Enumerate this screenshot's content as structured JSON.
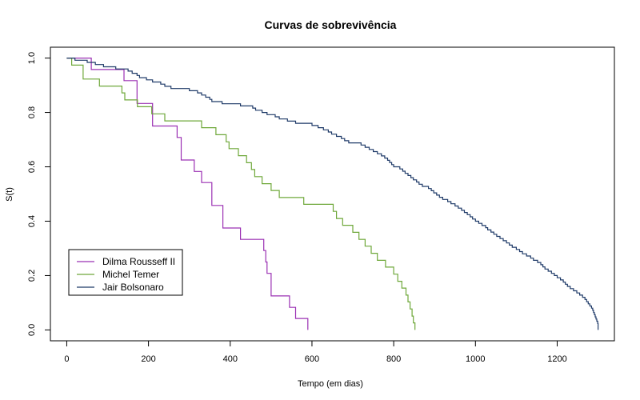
{
  "chart_data": {
    "type": "line",
    "step": true,
    "title": "Curvas de sobrevivência",
    "xlabel": "Tempo (em dias)",
    "ylabel": "S(t)",
    "xlim": [
      -40,
      1340
    ],
    "ylim": [
      -0.04,
      1.04
    ],
    "xticks": [
      0,
      200,
      400,
      600,
      800,
      1000,
      1200
    ],
    "yticks": [
      0.0,
      0.2,
      0.4,
      0.6,
      0.8,
      1.0
    ],
    "ytick_labels": [
      "0.0",
      "0.2",
      "0.4",
      "0.6",
      "0.8",
      "1.0"
    ],
    "grid": false,
    "legend_position": "bottom-left",
    "series": [
      {
        "name": "Dilma Rousseff II",
        "color": "#9B30B3",
        "points": [
          [
            0,
            1.0
          ],
          [
            60,
            0.958
          ],
          [
            140,
            0.917
          ],
          [
            172,
            0.833
          ],
          [
            210,
            0.75
          ],
          [
            270,
            0.708
          ],
          [
            280,
            0.625
          ],
          [
            312,
            0.583
          ],
          [
            330,
            0.542
          ],
          [
            355,
            0.458
          ],
          [
            382,
            0.375
          ],
          [
            425,
            0.333
          ],
          [
            482,
            0.292
          ],
          [
            487,
            0.25
          ],
          [
            490,
            0.208
          ],
          [
            500,
            0.125
          ],
          [
            545,
            0.083
          ],
          [
            560,
            0.042
          ],
          [
            590,
            0.0
          ]
        ]
      },
      {
        "name": "Michel Temer",
        "color": "#6FA83A",
        "points": [
          [
            0,
            1.0
          ],
          [
            12,
            0.974
          ],
          [
            40,
            0.923
          ],
          [
            80,
            0.897
          ],
          [
            135,
            0.872
          ],
          [
            142,
            0.846
          ],
          [
            173,
            0.821
          ],
          [
            208,
            0.795
          ],
          [
            240,
            0.769
          ],
          [
            330,
            0.744
          ],
          [
            365,
            0.718
          ],
          [
            390,
            0.692
          ],
          [
            397,
            0.667
          ],
          [
            420,
            0.641
          ],
          [
            440,
            0.615
          ],
          [
            452,
            0.59
          ],
          [
            460,
            0.564
          ],
          [
            478,
            0.538
          ],
          [
            500,
            0.513
          ],
          [
            520,
            0.487
          ],
          [
            580,
            0.462
          ],
          [
            640,
            0.462
          ],
          [
            652,
            0.436
          ],
          [
            660,
            0.41
          ],
          [
            675,
            0.385
          ],
          [
            700,
            0.359
          ],
          [
            715,
            0.333
          ],
          [
            730,
            0.308
          ],
          [
            745,
            0.282
          ],
          [
            760,
            0.256
          ],
          [
            780,
            0.231
          ],
          [
            800,
            0.205
          ],
          [
            810,
            0.179
          ],
          [
            820,
            0.154
          ],
          [
            830,
            0.128
          ],
          [
            835,
            0.103
          ],
          [
            840,
            0.077
          ],
          [
            845,
            0.051
          ],
          [
            848,
            0.026
          ],
          [
            852,
            0.0
          ]
        ]
      },
      {
        "name": "Jair Bolsonaro",
        "color": "#1F3A68",
        "points": [
          [
            0,
            1.0
          ],
          [
            20,
            0.992
          ],
          [
            50,
            0.984
          ],
          [
            70,
            0.976
          ],
          [
            90,
            0.968
          ],
          [
            120,
            0.96
          ],
          [
            150,
            0.952
          ],
          [
            160,
            0.944
          ],
          [
            172,
            0.936
          ],
          [
            178,
            0.928
          ],
          [
            195,
            0.92
          ],
          [
            210,
            0.912
          ],
          [
            230,
            0.904
          ],
          [
            240,
            0.896
          ],
          [
            255,
            0.888
          ],
          [
            300,
            0.88
          ],
          [
            320,
            0.872
          ],
          [
            330,
            0.864
          ],
          [
            340,
            0.856
          ],
          [
            350,
            0.848
          ],
          [
            355,
            0.84
          ],
          [
            380,
            0.832
          ],
          [
            425,
            0.824
          ],
          [
            455,
            0.816
          ],
          [
            462,
            0.808
          ],
          [
            478,
            0.8
          ],
          [
            490,
            0.792
          ],
          [
            510,
            0.784
          ],
          [
            520,
            0.776
          ],
          [
            540,
            0.768
          ],
          [
            560,
            0.76
          ],
          [
            600,
            0.752
          ],
          [
            615,
            0.744
          ],
          [
            628,
            0.736
          ],
          [
            640,
            0.728
          ],
          [
            648,
            0.72
          ],
          [
            660,
            0.712
          ],
          [
            672,
            0.704
          ],
          [
            680,
            0.696
          ],
          [
            690,
            0.688
          ],
          [
            720,
            0.68
          ],
          [
            730,
            0.672
          ],
          [
            740,
            0.664
          ],
          [
            750,
            0.656
          ],
          [
            760,
            0.648
          ],
          [
            770,
            0.64
          ],
          [
            778,
            0.632
          ],
          [
            785,
            0.624
          ],
          [
            790,
            0.616
          ],
          [
            795,
            0.608
          ],
          [
            800,
            0.6
          ],
          [
            815,
            0.592
          ],
          [
            822,
            0.584
          ],
          [
            828,
            0.576
          ],
          [
            835,
            0.568
          ],
          [
            842,
            0.56
          ],
          [
            848,
            0.552
          ],
          [
            856,
            0.544
          ],
          [
            862,
            0.536
          ],
          [
            870,
            0.528
          ],
          [
            885,
            0.52
          ],
          [
            892,
            0.512
          ],
          [
            898,
            0.504
          ],
          [
            905,
            0.496
          ],
          [
            912,
            0.488
          ],
          [
            920,
            0.48
          ],
          [
            932,
            0.472
          ],
          [
            940,
            0.464
          ],
          [
            950,
            0.456
          ],
          [
            958,
            0.448
          ],
          [
            966,
            0.44
          ],
          [
            973,
            0.432
          ],
          [
            980,
            0.424
          ],
          [
            987,
            0.416
          ],
          [
            993,
            0.408
          ],
          [
            1000,
            0.4
          ],
          [
            1008,
            0.392
          ],
          [
            1016,
            0.384
          ],
          [
            1025,
            0.376
          ],
          [
            1030,
            0.368
          ],
          [
            1038,
            0.36
          ],
          [
            1045,
            0.352
          ],
          [
            1052,
            0.344
          ],
          [
            1060,
            0.336
          ],
          [
            1068,
            0.328
          ],
          [
            1076,
            0.32
          ],
          [
            1083,
            0.312
          ],
          [
            1090,
            0.304
          ],
          [
            1100,
            0.296
          ],
          [
            1108,
            0.288
          ],
          [
            1115,
            0.28
          ],
          [
            1125,
            0.272
          ],
          [
            1135,
            0.264
          ],
          [
            1142,
            0.256
          ],
          [
            1152,
            0.248
          ],
          [
            1160,
            0.24
          ],
          [
            1165,
            0.232
          ],
          [
            1170,
            0.224
          ],
          [
            1178,
            0.216
          ],
          [
            1186,
            0.208
          ],
          [
            1193,
            0.2
          ],
          [
            1200,
            0.192
          ],
          [
            1208,
            0.184
          ],
          [
            1215,
            0.176
          ],
          [
            1220,
            0.168
          ],
          [
            1225,
            0.16
          ],
          [
            1232,
            0.152
          ],
          [
            1240,
            0.144
          ],
          [
            1248,
            0.136
          ],
          [
            1255,
            0.128
          ],
          [
            1262,
            0.12
          ],
          [
            1268,
            0.112
          ],
          [
            1272,
            0.104
          ],
          [
            1276,
            0.096
          ],
          [
            1280,
            0.088
          ],
          [
            1284,
            0.08
          ],
          [
            1287,
            0.072
          ],
          [
            1289,
            0.064
          ],
          [
            1291,
            0.056
          ],
          [
            1293,
            0.048
          ],
          [
            1295,
            0.04
          ],
          [
            1297,
            0.032
          ],
          [
            1299,
            0.024
          ],
          [
            1300,
            0.0
          ]
        ]
      }
    ]
  }
}
